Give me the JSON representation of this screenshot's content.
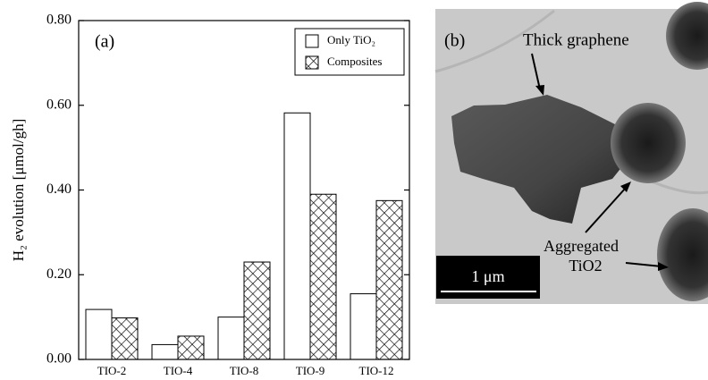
{
  "chart_data": {
    "type": "bar",
    "panel_label": "(a)",
    "ylabel": "H₂ evolution [μmol/gh]",
    "categories": [
      "TIO-2",
      "TIO-4",
      "TIO-8",
      "TIO-9",
      "TIO-12"
    ],
    "series": [
      {
        "name": "Only TiO₂",
        "color": "#ffffff",
        "hatch": false,
        "values": [
          0.118,
          0.035,
          0.1,
          0.582,
          0.155
        ]
      },
      {
        "name": "Composites",
        "color": "#000000",
        "hatch": true,
        "values": [
          0.098,
          0.055,
          0.23,
          0.39,
          0.375
        ]
      }
    ],
    "ylim": [
      0,
      0.8
    ],
    "yticks": [
      {
        "value": 0,
        "label": "0.00"
      },
      {
        "value": 0.2,
        "label": "0.20"
      },
      {
        "value": 0.4,
        "label": "0.40"
      },
      {
        "value": 0.6,
        "label": "0.60"
      },
      {
        "value": 0.8,
        "label": "0.80"
      }
    ],
    "legend": "upper right"
  },
  "image_panel": {
    "label": "(b)",
    "annotations": [
      "Thick graphene",
      "Aggregated",
      "TiO2"
    ],
    "scale_bar": "1 μm"
  }
}
